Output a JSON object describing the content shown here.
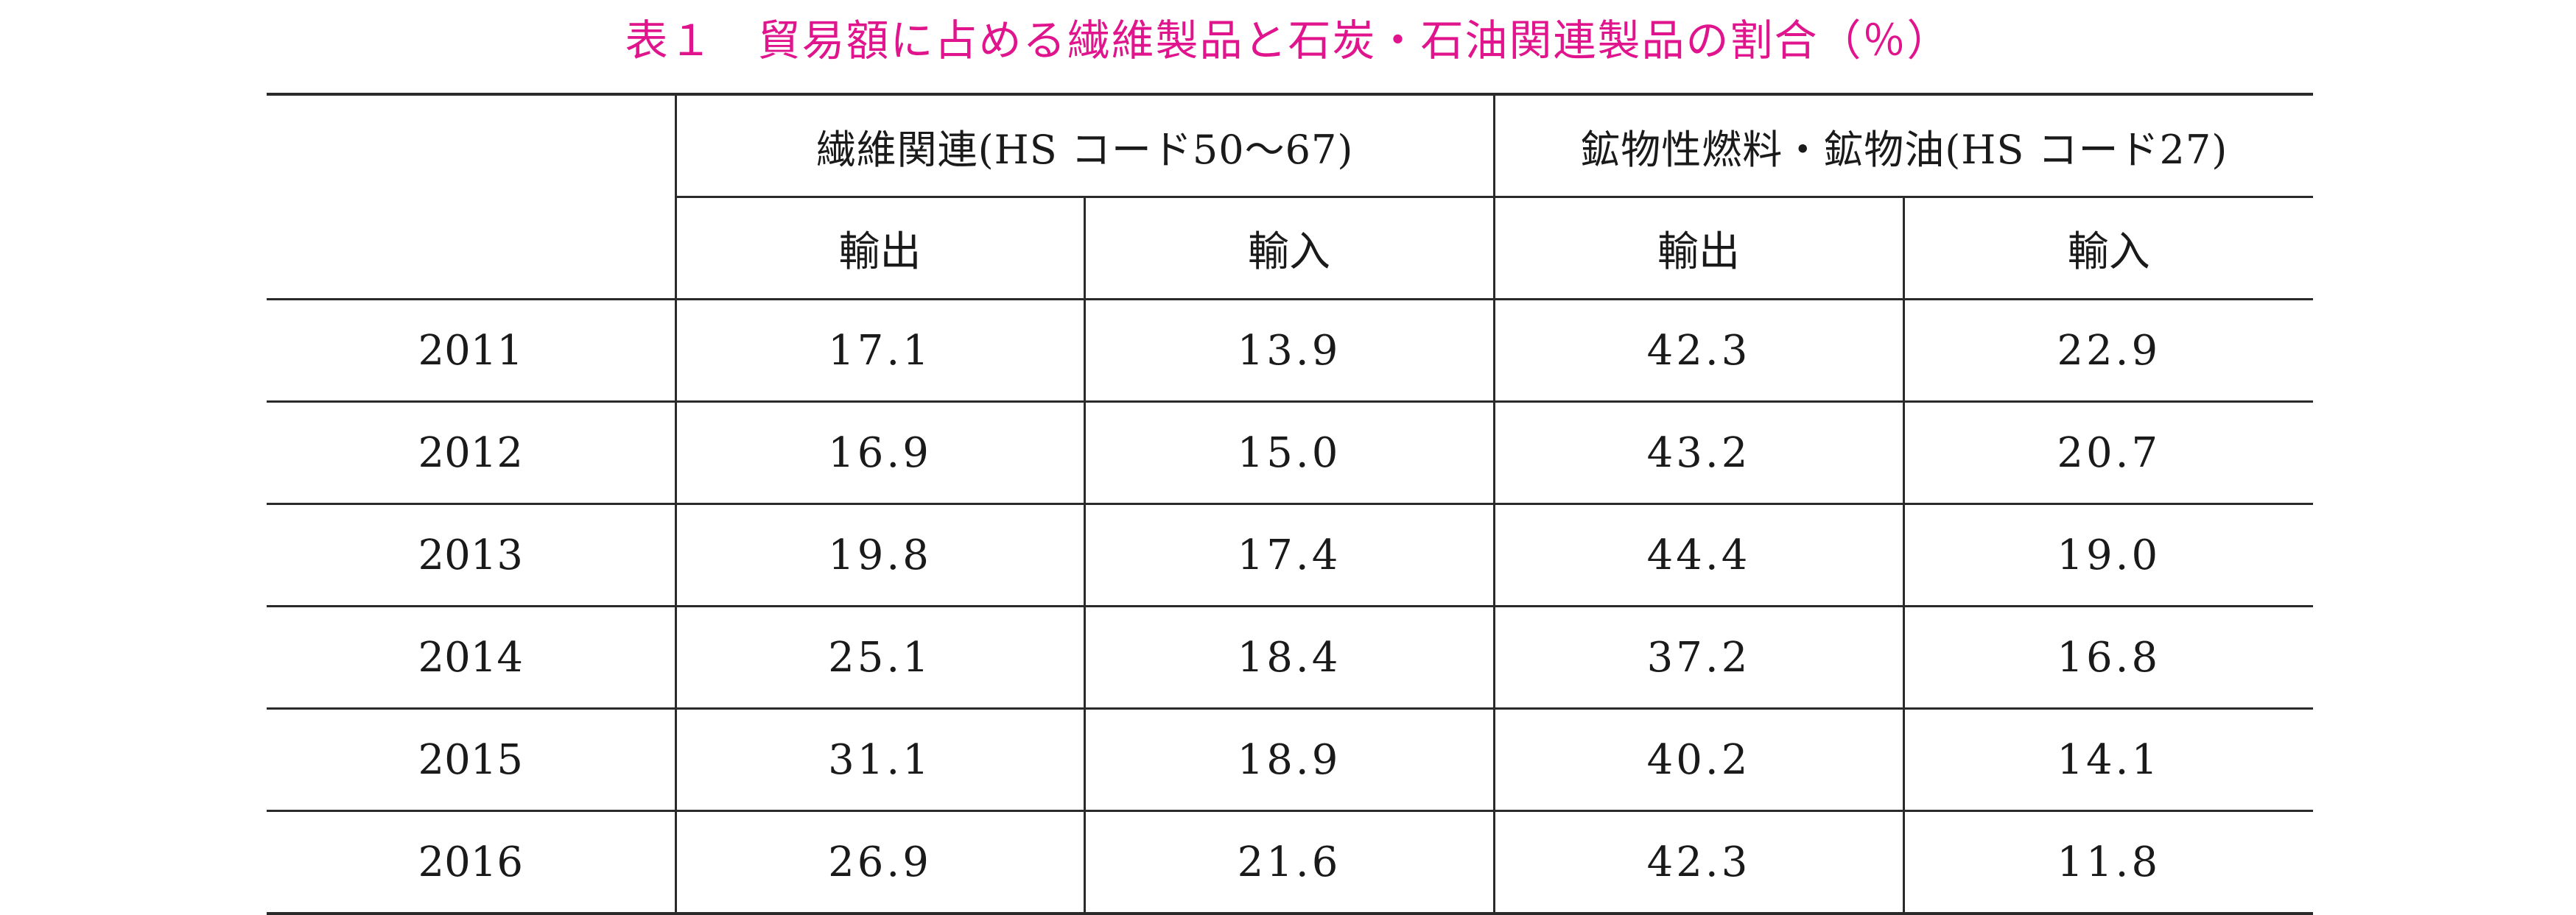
{
  "title": {
    "number": "表１",
    "text": "貿易額に占める繊維製品と石炭・石油関連製品の割合（％）"
  },
  "table": {
    "groups": [
      "繊維関連(HS コード50〜67)",
      "鉱物性燃料・鉱物油(HS コード27)"
    ],
    "subheaders": [
      "輸出",
      "輸入",
      "輸出",
      "輸入"
    ],
    "rows": [
      {
        "year": "2011",
        "values": [
          "17.1",
          "13.9",
          "42.3",
          "22.9"
        ]
      },
      {
        "year": "2012",
        "values": [
          "16.9",
          "15.0",
          "43.2",
          "20.7"
        ]
      },
      {
        "year": "2013",
        "values": [
          "19.8",
          "17.4",
          "44.4",
          "19.0"
        ]
      },
      {
        "year": "2014",
        "values": [
          "25.1",
          "18.4",
          "37.2",
          "16.8"
        ]
      },
      {
        "year": "2015",
        "values": [
          "31.1",
          "18.9",
          "40.2",
          "14.1"
        ]
      },
      {
        "year": "2016",
        "values": [
          "26.9",
          "21.6",
          "42.3",
          "11.8"
        ]
      }
    ]
  },
  "colors": {
    "title": "#e0148c",
    "text": "#1a1a1a",
    "rule": "#2a2a2a"
  }
}
